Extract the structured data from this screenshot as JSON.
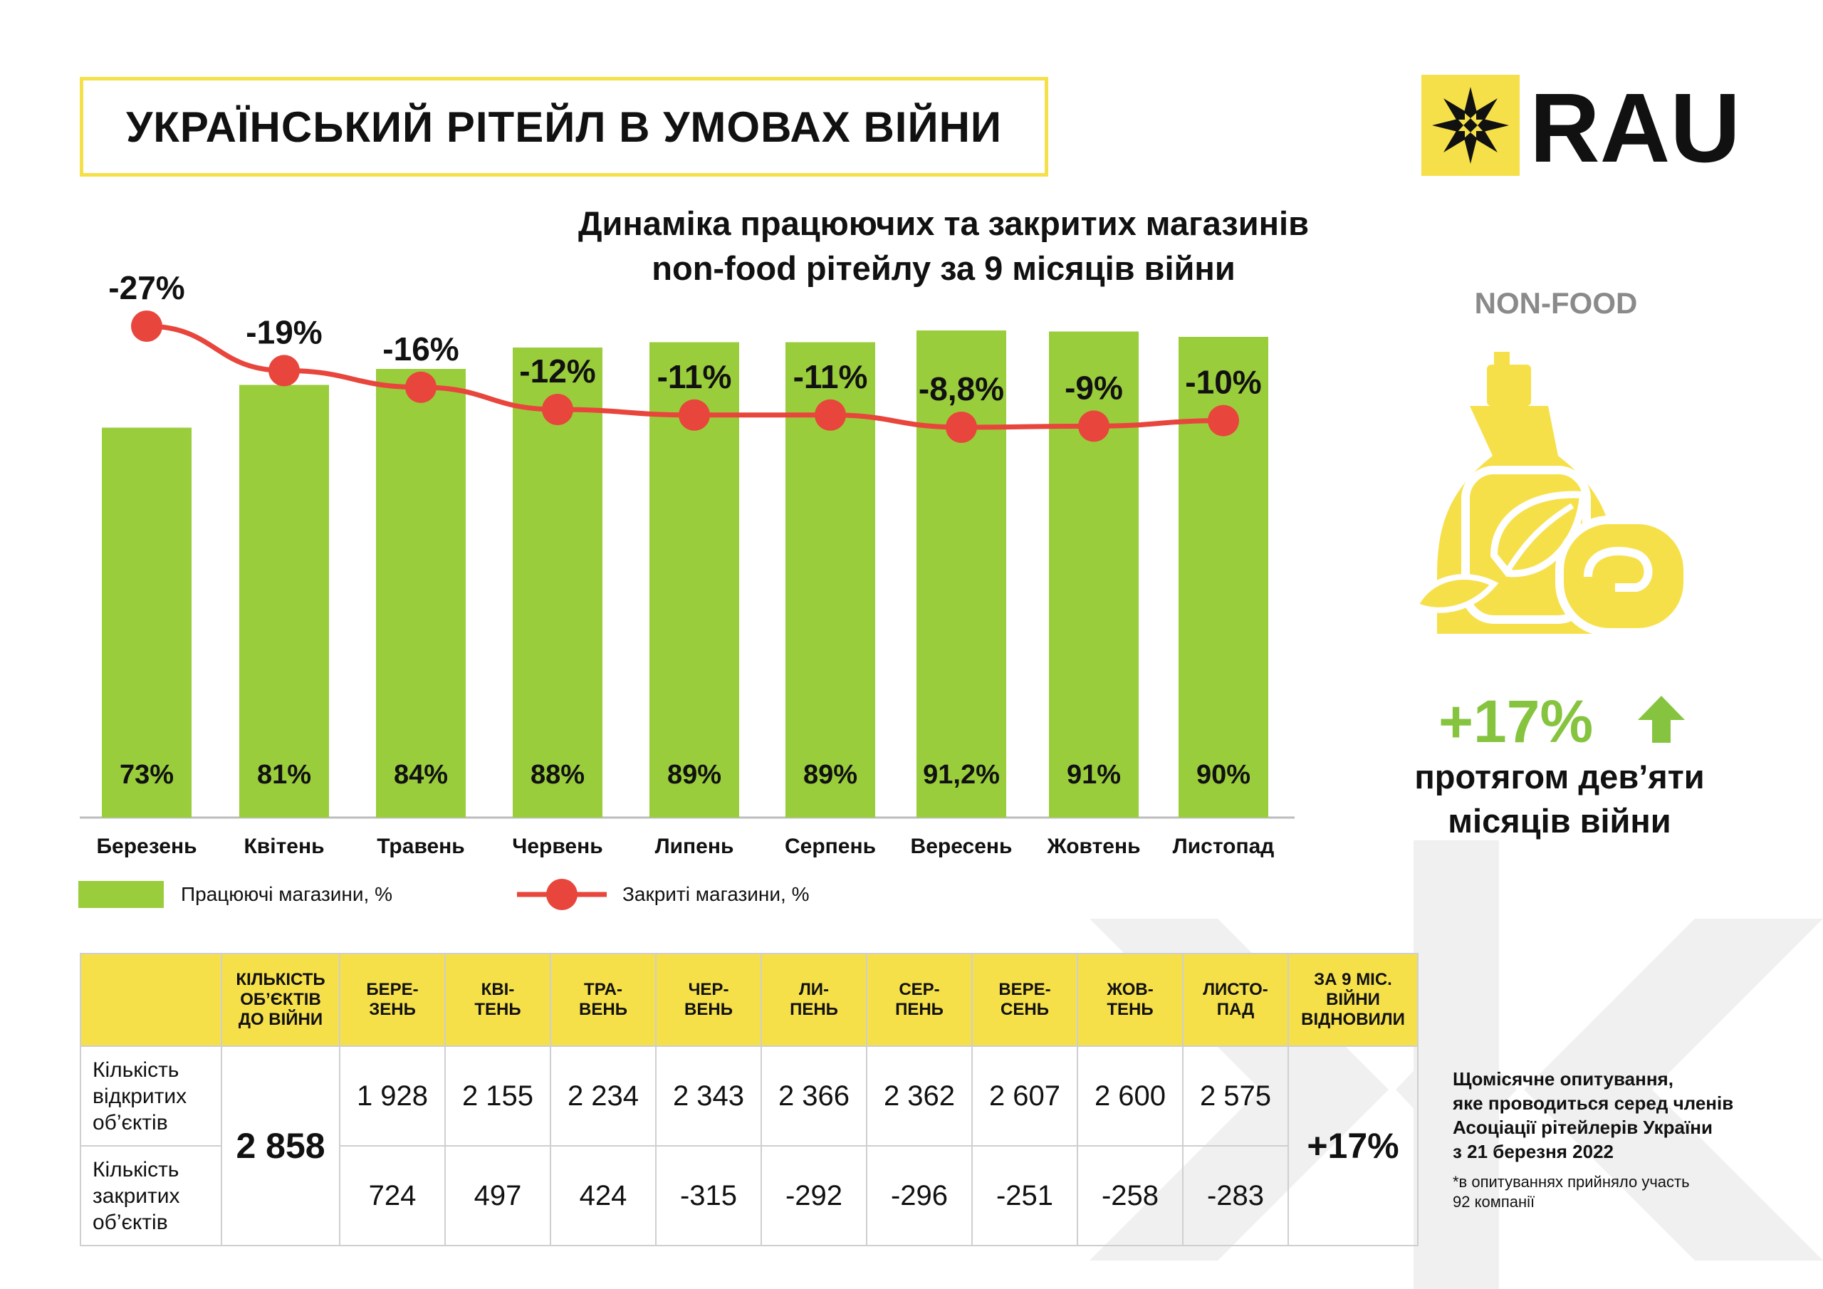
{
  "header": {
    "title": "УКРАЇНСЬКИЙ РІТЕЙЛ В УМОВАХ ВІЙНИ",
    "logo_text": "RAU"
  },
  "colors": {
    "accent_yellow": "#f6e04a",
    "bar_green": "#9acd3c",
    "line_red": "#e8453c",
    "highlight_green": "#86c440",
    "muted_grey": "#8a8a8a"
  },
  "chart_data": {
    "type": "bar",
    "title": "Динаміка працюючих та закритих магазинів non-food рітейлу за 9 місяців війни",
    "title_lines": [
      "Динаміка працюючих та закритих магазинів",
      "non-food рітейлу за 9 місяців війни"
    ],
    "categories": [
      "Березень",
      "Квітень",
      "Травень",
      "Червень",
      "Липень",
      "Серпень",
      "Вересень",
      "Жовтень",
      "Листопад"
    ],
    "series": [
      {
        "name": "Працюючі магазини, %",
        "type": "bar",
        "values": [
          73,
          81,
          84,
          88,
          89,
          89,
          91.2,
          91,
          90
        ],
        "labels": [
          "73%",
          "81%",
          "84%",
          "88%",
          "89%",
          "89%",
          "91,2%",
          "91%",
          "90%"
        ]
      },
      {
        "name": "Закриті магазини, %",
        "type": "line",
        "values": [
          -27,
          -19,
          -16,
          -12,
          -11,
          -11,
          -8.8,
          -9,
          -10
        ],
        "labels": [
          "-27%",
          "-19%",
          "-16%",
          "-12%",
          "-11%",
          "-11%",
          "-8,8%",
          "-9%",
          "-10%"
        ]
      }
    ],
    "legend": [
      {
        "label": "Працюючі магазини, %",
        "kind": "bar"
      },
      {
        "label": "Закриті магазини, %",
        "kind": "line"
      }
    ],
    "legend_position": "bottom",
    "grid": false
  },
  "side_panel": {
    "category": "NON-FOOD",
    "change": "+17%",
    "caption_lines": [
      "протягом дев’яти",
      "місяців війни"
    ]
  },
  "table": {
    "headers": [
      "",
      "КІЛЬКІСТЬ ОБ’ЄКТІВ ДО ВІЙНИ",
      "БЕРЕ- ЗЕНЬ",
      "КВІ- ТЕНЬ",
      "ТРА- ВЕНЬ",
      "ЧЕР- ВЕНЬ",
      "ЛИ- ПЕНЬ",
      "СЕР- ПЕНЬ",
      "ВЕРЕ- СЕНЬ",
      "ЖОВ- ТЕНЬ",
      "ЛИСТО- ПАД",
      "ЗА 9 МІС. ВІЙНИ ВІДНОВИЛИ"
    ],
    "header_lines": [
      [
        ""
      ],
      [
        "КІЛЬКІСТЬ",
        "ОБ’ЄКТІВ",
        "ДО ВІЙНИ"
      ],
      [
        "БЕРЕ-",
        "ЗЕНЬ"
      ],
      [
        "КВІ-",
        "ТЕНЬ"
      ],
      [
        "ТРА-",
        "ВЕНЬ"
      ],
      [
        "ЧЕР-",
        "ВЕНЬ"
      ],
      [
        "ЛИ-",
        "ПЕНЬ"
      ],
      [
        "СЕР-",
        "ПЕНЬ"
      ],
      [
        "ВЕРЕ-",
        "СЕНЬ"
      ],
      [
        "ЖОВ-",
        "ТЕНЬ"
      ],
      [
        "ЛИСТО-",
        "ПАД"
      ],
      [
        "ЗА 9 МІС.",
        "ВІЙНИ",
        "ВІДНОВИЛИ"
      ]
    ],
    "prewar_count": "2 858",
    "total_change": "+17%",
    "rows": [
      {
        "label": "Кількість відкритих об’єктів",
        "label_lines": [
          "Кількість",
          "відкритих",
          "об’єктів"
        ],
        "values": [
          "1 928",
          "2 155",
          "2 234",
          "2 343",
          "2 366",
          "2 362",
          "2 607",
          "2 600",
          "2 575"
        ]
      },
      {
        "label": "Кількість закритих об’єктів",
        "label_lines": [
          "Кількість",
          "закритих",
          "об’єктів"
        ],
        "values": [
          "724",
          "497",
          "424",
          "-315",
          "-292",
          "-296",
          "-251",
          "-258",
          "-283"
        ]
      }
    ]
  },
  "survey": {
    "lines": [
      "Щомісячне опитування,",
      "яке проводиться серед членів",
      "Асоціації рітейлерів України",
      "з 21 березня 2022"
    ],
    "note_lines": [
      "*в опитуваннях прийняло участь",
      "92 компанії"
    ]
  }
}
